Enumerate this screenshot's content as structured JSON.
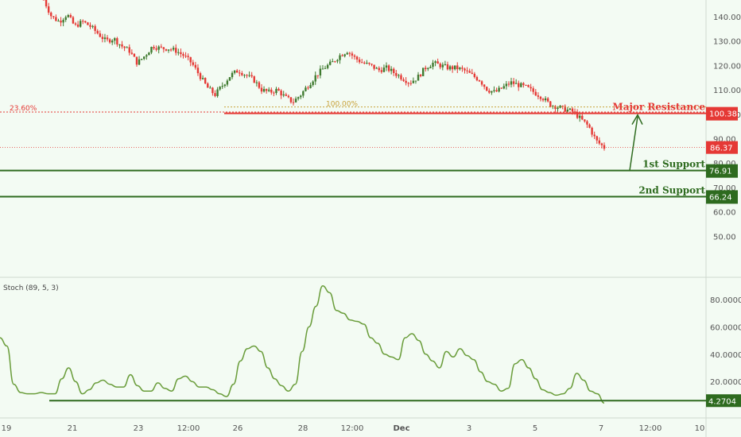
{
  "chart_data": [
    {
      "type": "candlestick",
      "ylim": [
        40,
        148
      ],
      "y_ticks": [
        "140.00",
        "130.00",
        "120.00",
        "110.00",
        "100.00",
        "90.00",
        "80.00",
        "70.00",
        "60.00",
        "50.00"
      ],
      "y_tick_values": [
        140,
        130,
        120,
        110,
        100,
        90,
        80,
        70,
        60,
        50
      ],
      "x_ticks": [
        "19",
        "21",
        "23",
        "12:00",
        "26",
        "28",
        "12:00",
        "Dec",
        "3",
        "5",
        "7",
        "12:00",
        "10"
      ],
      "close_path": [
        [
          0,
          147
        ],
        [
          1,
          140
        ],
        [
          2,
          138
        ],
        [
          3,
          141
        ],
        [
          4,
          136
        ],
        [
          5,
          138
        ],
        [
          6,
          136
        ],
        [
          7,
          133
        ],
        [
          8,
          130
        ],
        [
          9,
          131
        ],
        [
          10,
          128
        ],
        [
          11,
          126
        ],
        [
          12,
          121
        ],
        [
          13,
          124
        ],
        [
          14,
          128
        ],
        [
          15,
          127
        ],
        [
          16,
          127
        ],
        [
          17,
          126
        ],
        [
          18,
          124
        ],
        [
          19,
          121
        ],
        [
          20,
          116
        ],
        [
          21,
          111
        ],
        [
          22,
          108
        ],
        [
          23,
          112
        ],
        [
          24,
          116
        ],
        [
          25,
          118
        ],
        [
          26,
          116
        ],
        [
          27,
          114
        ],
        [
          28,
          110
        ],
        [
          29,
          109
        ],
        [
          30,
          110
        ],
        [
          31,
          107
        ],
        [
          32,
          105
        ],
        [
          33,
          108
        ],
        [
          34,
          112
        ],
        [
          35,
          116
        ],
        [
          36,
          119
        ],
        [
          37,
          121
        ],
        [
          38,
          124
        ],
        [
          39,
          126
        ],
        [
          40,
          123
        ],
        [
          41,
          121
        ],
        [
          42,
          120
        ],
        [
          43,
          118
        ],
        [
          44,
          119
        ],
        [
          45,
          117
        ],
        [
          46,
          115
        ],
        [
          47,
          113
        ],
        [
          48,
          115
        ],
        [
          49,
          119
        ],
        [
          50,
          121
        ],
        [
          51,
          120
        ],
        [
          52,
          119
        ],
        [
          53,
          119
        ],
        [
          54,
          118
        ],
        [
          55,
          116
        ],
        [
          56,
          114
        ],
        [
          57,
          110
        ],
        [
          58,
          109
        ],
        [
          59,
          111
        ],
        [
          60,
          113
        ],
        [
          61,
          112
        ],
        [
          62,
          111
        ],
        [
          63,
          109
        ],
        [
          64,
          107
        ],
        [
          65,
          104
        ],
        [
          66,
          103
        ],
        [
          67,
          102
        ],
        [
          68,
          101
        ],
        [
          69,
          98
        ],
        [
          70,
          95
        ],
        [
          71,
          89
        ],
        [
          72,
          86.37
        ]
      ],
      "close_path_xrange": [
        55,
        760
      ],
      "fib_lines": [
        {
          "label": "23.60%",
          "value": 100.9,
          "color": "#e53935"
        },
        {
          "label": "100.00%",
          "value": 102.0,
          "color": "#c8a23a"
        }
      ],
      "levels": [
        {
          "name": "Major Resistance",
          "value": 100.38,
          "tag": "100.38",
          "color": "#e53935"
        },
        {
          "name": "1st Support",
          "value": 76.91,
          "tag": "76.91",
          "color": "#2e6b1f"
        },
        {
          "name": "2nd Support",
          "value": 66.24,
          "tag": "66.24",
          "color": "#2e6b1f"
        }
      ],
      "last_price": {
        "value": 86.37,
        "tag": "86.37",
        "color": "#e53935"
      }
    },
    {
      "type": "line",
      "title": "Stoch (89, 5, 3)",
      "ylim": [
        0,
        95
      ],
      "y_ticks": [
        "80.0000",
        "60.0000",
        "40.0000",
        "20.0000"
      ],
      "y_tick_values": [
        80,
        60,
        40,
        20
      ],
      "series": [
        {
          "values": [
            52,
            46,
            18,
            12,
            11,
            11,
            12,
            11,
            11,
            22,
            30,
            20,
            11,
            14,
            19,
            21,
            18,
            16,
            16,
            25,
            17,
            13,
            13,
            19,
            15,
            13,
            22,
            24,
            20,
            16,
            16,
            14,
            11,
            9,
            18,
            35,
            44,
            46,
            42,
            30,
            22,
            17,
            13,
            18,
            42,
            60,
            75,
            90,
            85,
            72,
            70,
            65,
            64,
            62,
            52,
            48,
            40,
            38,
            36,
            52,
            55,
            50,
            40,
            35,
            30,
            42,
            38,
            44,
            39,
            36,
            27,
            20,
            18,
            13,
            15,
            33,
            36,
            30,
            22,
            14,
            12,
            10,
            11,
            15,
            26,
            21,
            13,
            11,
            4.2704
          ],
          "color": "#6a9d3b"
        }
      ],
      "reference_line": {
        "value": 4.2704,
        "tag": "4.2704",
        "color": "#2e6b1f"
      }
    }
  ],
  "colors": {
    "background": "#f3fbf3",
    "up_candle": "#3f7a2f",
    "down_candle": "#e53935",
    "axis_text": "#555555"
  }
}
